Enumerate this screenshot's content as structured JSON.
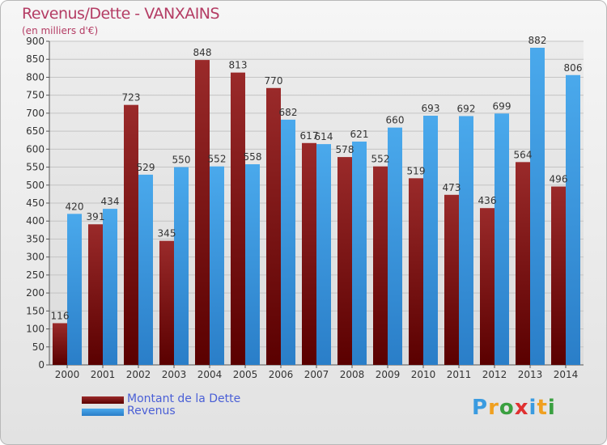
{
  "chart_data": {
    "type": "bar",
    "title": "Revenus/Dette - VANXAINS",
    "subtitle": "(en milliers d'€)",
    "categories": [
      "2000",
      "2001",
      "2002",
      "2003",
      "2004",
      "2005",
      "2006",
      "2007",
      "2008",
      "2009",
      "2010",
      "2011",
      "2012",
      "2013",
      "2014"
    ],
    "series": [
      {
        "name": "Montant de la Dette",
        "color": "#8b1a1a",
        "values": [
          116,
          391,
          723,
          345,
          848,
          813,
          770,
          617,
          578,
          552,
          519,
          473,
          436,
          564,
          496
        ]
      },
      {
        "name": "Revenus",
        "color": "#3a9be0",
        "values": [
          420,
          434,
          529,
          550,
          552,
          558,
          682,
          614,
          621,
          660,
          693,
          692,
          699,
          882,
          806
        ]
      }
    ],
    "yticks": [
      "0",
      "50",
      "100",
      "150",
      "200",
      "250",
      "300",
      "350",
      "400",
      "450",
      "500",
      "550",
      "600",
      "650",
      "700",
      "750",
      "800",
      "850",
      "900"
    ],
    "ylim": [
      0,
      900
    ],
    "grid": true,
    "legend_position": "bottom-left"
  },
  "logo": {
    "text": "Proxiti"
  }
}
